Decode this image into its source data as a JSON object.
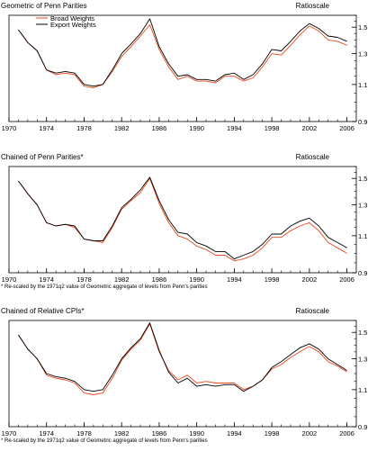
{
  "chart_data": [
    {
      "type": "line",
      "title": "Geometric of Penn Parities",
      "y_axis_label": "Ratioscale",
      "y_scale": "log",
      "xlim": [
        1970,
        2007
      ],
      "ylim": [
        0.9,
        1.6
      ],
      "y_ticks": [
        0.9,
        1.1,
        1.3,
        1.5
      ],
      "x_tick_labels": [
        "1970",
        "1974",
        "1978",
        "1982",
        "1986",
        "1990",
        "1994",
        "1998",
        "2002",
        "2006"
      ],
      "legend": {
        "position": "top-left",
        "entries": [
          "Broad Weights",
          "Export Weights"
        ]
      },
      "footnote": "",
      "series": [
        {
          "name": "Broad Weights",
          "color": "#e8481c",
          "x": [
            1971,
            1972,
            1973,
            1974,
            1975,
            1976,
            1977,
            1978,
            1979,
            1980,
            1981,
            1982,
            1983,
            1984,
            1985,
            1986,
            1987,
            1988,
            1989,
            1990,
            1991,
            1992,
            1993,
            1994,
            1995,
            1996,
            1997,
            1998,
            1999,
            2000,
            2001,
            2002,
            2003,
            2004,
            2005,
            2006
          ],
          "values": [
            1.48,
            1.38,
            1.32,
            1.19,
            1.16,
            1.17,
            1.16,
            1.09,
            1.08,
            1.1,
            1.18,
            1.28,
            1.35,
            1.43,
            1.52,
            1.33,
            1.21,
            1.13,
            1.15,
            1.12,
            1.12,
            1.11,
            1.15,
            1.15,
            1.12,
            1.14,
            1.21,
            1.3,
            1.29,
            1.36,
            1.44,
            1.51,
            1.47,
            1.4,
            1.39,
            1.36
          ]
        },
        {
          "name": "Export Weights",
          "color": "#000000",
          "x": [
            1971,
            1972,
            1973,
            1974,
            1975,
            1976,
            1977,
            1978,
            1979,
            1980,
            1981,
            1982,
            1983,
            1984,
            1985,
            1986,
            1987,
            1988,
            1989,
            1990,
            1991,
            1992,
            1993,
            1994,
            1995,
            1996,
            1997,
            1998,
            1999,
            2000,
            2001,
            2002,
            2003,
            2004,
            2005,
            2006
          ],
          "values": [
            1.48,
            1.38,
            1.32,
            1.19,
            1.17,
            1.18,
            1.17,
            1.1,
            1.09,
            1.1,
            1.19,
            1.3,
            1.37,
            1.45,
            1.57,
            1.35,
            1.23,
            1.15,
            1.16,
            1.13,
            1.13,
            1.12,
            1.16,
            1.17,
            1.13,
            1.16,
            1.23,
            1.33,
            1.32,
            1.39,
            1.47,
            1.53,
            1.49,
            1.43,
            1.42,
            1.39
          ]
        }
      ]
    },
    {
      "type": "line",
      "title": "Chained of Penn Parities*",
      "y_axis_label": "Ratioscale",
      "y_scale": "log",
      "xlim": [
        1970,
        2007
      ],
      "ylim": [
        0.9,
        1.6
      ],
      "y_ticks": [
        0.9,
        1.1,
        1.3,
        1.5
      ],
      "x_tick_labels": [
        "1970",
        "1974",
        "1978",
        "1982",
        "1986",
        "1990",
        "1994",
        "1998",
        "2002",
        "2006"
      ],
      "footnote": "* Re-scaled by the 1971q2 value of Geometric aggregate of levels from Penn's parities",
      "series": [
        {
          "color": "#e8481c",
          "x": [
            1971,
            1972,
            1973,
            1974,
            1975,
            1976,
            1977,
            1978,
            1979,
            1980,
            1981,
            1982,
            1983,
            1984,
            1985,
            1986,
            1987,
            1988,
            1989,
            1990,
            1991,
            1992,
            1993,
            1994,
            1995,
            1996,
            1997,
            1998,
            1999,
            2000,
            2001,
            2002,
            2003,
            2004,
            2005,
            2006
          ],
          "values": [
            1.48,
            1.38,
            1.3,
            1.18,
            1.16,
            1.17,
            1.15,
            1.08,
            1.07,
            1.06,
            1.15,
            1.27,
            1.33,
            1.39,
            1.5,
            1.31,
            1.18,
            1.1,
            1.08,
            1.04,
            1.02,
            0.99,
            0.99,
            0.96,
            0.97,
            0.99,
            1.03,
            1.09,
            1.09,
            1.13,
            1.16,
            1.18,
            1.13,
            1.06,
            1.03,
            1.0
          ]
        },
        {
          "color": "#000000",
          "x": [
            1971,
            1972,
            1973,
            1974,
            1975,
            1976,
            1977,
            1978,
            1979,
            1980,
            1981,
            1982,
            1983,
            1984,
            1985,
            1986,
            1987,
            1988,
            1989,
            1990,
            1991,
            1992,
            1993,
            1994,
            1995,
            1996,
            1997,
            1998,
            1999,
            2000,
            2001,
            2002,
            2003,
            2004,
            2005,
            2006
          ],
          "values": [
            1.48,
            1.38,
            1.3,
            1.18,
            1.16,
            1.17,
            1.16,
            1.08,
            1.07,
            1.07,
            1.16,
            1.28,
            1.34,
            1.41,
            1.51,
            1.33,
            1.2,
            1.12,
            1.11,
            1.06,
            1.04,
            1.01,
            1.01,
            0.97,
            0.99,
            1.01,
            1.05,
            1.11,
            1.11,
            1.16,
            1.19,
            1.21,
            1.16,
            1.09,
            1.06,
            1.03
          ]
        }
      ]
    },
    {
      "type": "line",
      "title": "Chained of Relative CPIs*",
      "y_axis_label": "Ratioscale",
      "y_scale": "log",
      "xlim": [
        1970,
        2007
      ],
      "ylim": [
        0.9,
        1.6
      ],
      "y_ticks": [
        0.9,
        1.1,
        1.3,
        1.5
      ],
      "x_tick_labels": [
        "1970",
        "1974",
        "1978",
        "1982",
        "1986",
        "1990",
        "1994",
        "1998",
        "2002",
        "2006"
      ],
      "footnote": "* Re-scaled by the 1971q2 value of Geometric aggregate of levels from Penn's parities",
      "series": [
        {
          "color": "#e8481c",
          "x": [
            1971,
            1972,
            1973,
            1974,
            1975,
            1976,
            1977,
            1978,
            1979,
            1980,
            1981,
            1982,
            1983,
            1984,
            1985,
            1986,
            1987,
            1988,
            1989,
            1990,
            1991,
            1992,
            1993,
            1994,
            1995,
            1996,
            1997,
            1998,
            1999,
            2000,
            2001,
            2002,
            2003,
            2004,
            2005,
            2006
          ],
          "values": [
            1.48,
            1.37,
            1.3,
            1.19,
            1.17,
            1.16,
            1.14,
            1.08,
            1.07,
            1.08,
            1.17,
            1.29,
            1.37,
            1.44,
            1.57,
            1.35,
            1.22,
            1.16,
            1.19,
            1.14,
            1.15,
            1.14,
            1.14,
            1.14,
            1.1,
            1.12,
            1.16,
            1.23,
            1.26,
            1.31,
            1.35,
            1.39,
            1.35,
            1.28,
            1.25,
            1.21
          ]
        },
        {
          "color": "#000000",
          "x": [
            1971,
            1972,
            1973,
            1974,
            1975,
            1976,
            1977,
            1978,
            1979,
            1980,
            1981,
            1982,
            1983,
            1984,
            1985,
            1986,
            1987,
            1988,
            1989,
            1990,
            1991,
            1992,
            1993,
            1994,
            1995,
            1996,
            1997,
            1998,
            1999,
            2000,
            2001,
            2002,
            2003,
            2004,
            2005,
            2006
          ],
          "values": [
            1.48,
            1.37,
            1.3,
            1.2,
            1.18,
            1.17,
            1.15,
            1.1,
            1.09,
            1.1,
            1.19,
            1.3,
            1.38,
            1.45,
            1.58,
            1.36,
            1.21,
            1.14,
            1.17,
            1.12,
            1.13,
            1.12,
            1.13,
            1.13,
            1.09,
            1.12,
            1.16,
            1.24,
            1.28,
            1.33,
            1.38,
            1.41,
            1.37,
            1.3,
            1.26,
            1.22
          ]
        }
      ]
    }
  ]
}
